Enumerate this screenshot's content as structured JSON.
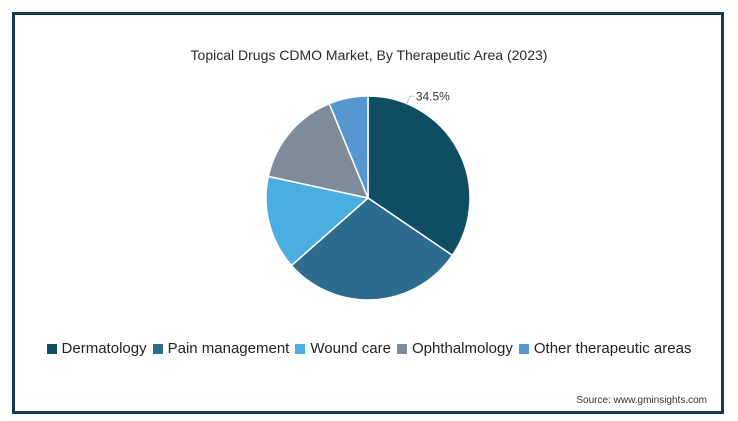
{
  "chart_data": {
    "type": "pie",
    "title": "Topical Drugs CDMO Market, By Therapeutic Area (2023)",
    "categories": [
      "Dermatology",
      "Pain management",
      "Wound care",
      "Ophthalmology",
      "Other therapeutic areas"
    ],
    "values": [
      34.5,
      29.0,
      14.9,
      15.4,
      6.2
    ],
    "colors": [
      "#0f4d63",
      "#2d6b8f",
      "#4aaee0",
      "#7d8b9a",
      "#5797d1"
    ],
    "data_labels": [
      {
        "category": "Dermatology",
        "text": "34.5%"
      }
    ],
    "legend_position": "bottom"
  },
  "source": "Source: www.gminsights.com"
}
